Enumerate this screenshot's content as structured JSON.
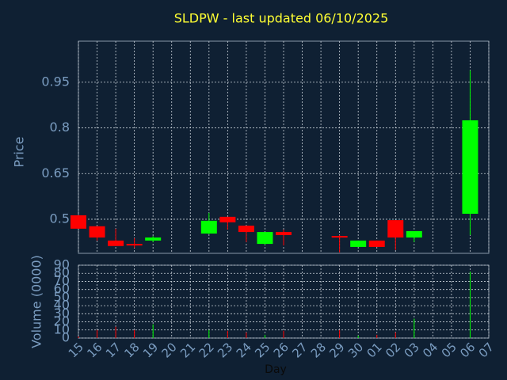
{
  "chart_data": {
    "type": "candlestick",
    "title": "SLDPW - last updated 06/10/2025",
    "xlabel": "Day",
    "ylabel": "Price",
    "categories": [
      "15",
      "16",
      "17",
      "18",
      "19",
      "20",
      "21",
      "22",
      "23",
      "24",
      "25",
      "26",
      "27",
      "28",
      "29",
      "30",
      "01",
      "02",
      "03",
      "04",
      "05",
      "06",
      "07"
    ],
    "open": [
      0.513,
      0.477,
      0.43,
      0.419,
      0.43,
      null,
      null,
      0.453,
      0.508,
      0.479,
      0.419,
      0.458,
      null,
      null,
      0.445,
      0.409,
      0.43,
      0.497,
      0.44,
      null,
      null,
      0.518,
      null
    ],
    "high": [
      0.513,
      0.477,
      0.469,
      0.438,
      0.445,
      null,
      null,
      0.521,
      0.508,
      0.479,
      0.458,
      0.466,
      null,
      null,
      0.448,
      0.43,
      0.43,
      0.497,
      0.461,
      null,
      null,
      0.989,
      null
    ],
    "low": [
      0.469,
      0.43,
      0.412,
      0.406,
      0.425,
      null,
      null,
      0.451,
      0.466,
      0.425,
      0.416,
      0.414,
      null,
      null,
      0.391,
      0.409,
      0.409,
      0.399,
      0.425,
      null,
      null,
      0.448,
      null
    ],
    "close": [
      0.469,
      0.44,
      0.412,
      0.414,
      0.44,
      null,
      null,
      0.495,
      0.49,
      0.458,
      0.458,
      0.448,
      null,
      null,
      0.44,
      0.43,
      0.409,
      0.44,
      0.461,
      null,
      null,
      0.825,
      null
    ],
    "ylim": [
      0.388,
      1.085
    ],
    "yticks": [
      0.5,
      0.65,
      0.8,
      0.95
    ],
    "up_color": "#00ff00",
    "down_color": "#ff0000",
    "grid": true,
    "volume": {
      "ylabel": "Volume (0000)",
      "values": [
        2,
        10,
        14,
        10,
        17,
        null,
        null,
        10,
        9,
        7,
        4,
        9,
        null,
        null,
        10,
        3,
        4,
        7,
        24,
        null,
        null,
        82,
        null
      ],
      "ylim": [
        0,
        90
      ],
      "yticks": [
        0,
        10,
        20,
        30,
        40,
        50,
        60,
        70,
        80,
        90
      ]
    }
  }
}
